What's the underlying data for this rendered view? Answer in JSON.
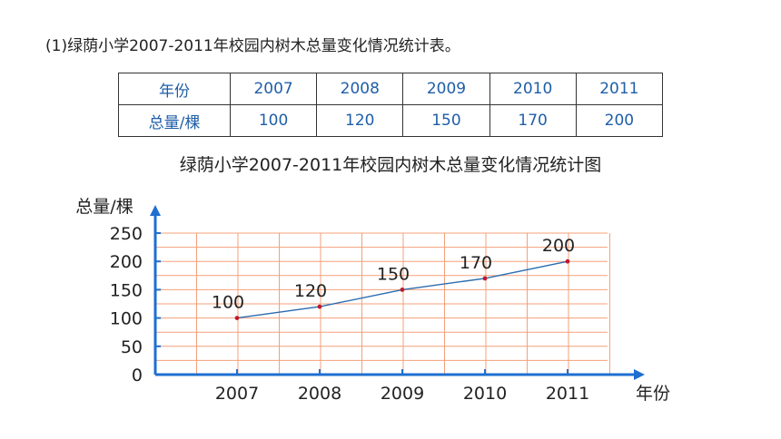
{
  "heading": "(1)绿荫小学2007-2011年校园内树木总量变化情况统计表。",
  "table": {
    "header_row": [
      "年份",
      "2007",
      "2008",
      "2009",
      "2010",
      "2011"
    ],
    "value_row": [
      "总量/棵",
      "100",
      "120",
      "150",
      "170",
      "200"
    ]
  },
  "colors": {
    "grid": "#f4a07a",
    "axis": "#1e6fd0",
    "line": "#2b6cb0",
    "point": "#c0192b",
    "table_text": "#1f5ea8"
  },
  "chart_data": {
    "type": "line",
    "title": "绿荫小学2007-2011年校园内树木总量变化情况统计图",
    "xlabel": "年份",
    "ylabel": "总量/棵",
    "categories": [
      "2007",
      "2008",
      "2009",
      "2010",
      "2011"
    ],
    "series": [
      {
        "values": [
          100,
          120,
          150,
          170,
          200
        ]
      }
    ],
    "data_labels": [
      "100",
      "120",
      "150",
      "170",
      "200"
    ],
    "y_ticks": [
      0,
      50,
      100,
      150,
      200,
      250
    ],
    "ylim": [
      0,
      250
    ],
    "grid": true,
    "legend": "none"
  }
}
